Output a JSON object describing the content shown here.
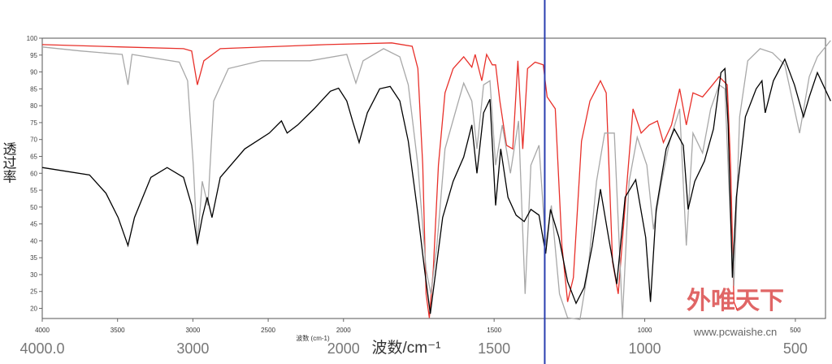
{
  "chart_data": {
    "type": "line",
    "ylabel": "透过率",
    "xlabel": "波数/cm⁻¹",
    "xlabel_small": "波数 (cm-1)",
    "xlim": [
      4000,
      400
    ],
    "xscale": {
      "break": 2000,
      "compress": 2
    },
    "xticks": [
      4000,
      3500,
      3000,
      2500,
      2000,
      1500,
      1000,
      500
    ],
    "x2ticks": [
      {
        "value": 4000,
        "label": "4000.0"
      },
      3000,
      2000,
      1500,
      1000,
      500
    ],
    "ylim": [
      17,
      100
    ],
    "yticks": [
      100,
      95,
      90,
      85,
      80,
      75,
      70,
      65,
      60,
      55,
      50,
      45,
      40,
      35,
      30,
      25,
      20
    ],
    "cursor": {
      "x": 1332,
      "color": "#2b3fb0"
    },
    "logo": {
      "title": "外唯天下",
      "url": "www.pcwaishe.cn"
    },
    "series": [
      {
        "color": "#000000",
        "x": [
          4000,
          3686,
          3577,
          3496,
          3431,
          3388,
          3279,
          3171,
          3062,
          3008,
          2970,
          2938,
          2905,
          2873,
          2818,
          2656,
          2493,
          2412,
          2374,
          2304,
          2195,
          2087,
          2033,
          1989,
          1970,
          1948,
          1921,
          1880,
          1845,
          1813,
          1785,
          1753,
          1731,
          1712,
          1693,
          1671,
          1636,
          1601,
          1574,
          1557,
          1535,
          1514,
          1495,
          1478,
          1454,
          1427,
          1400,
          1378,
          1351,
          1329,
          1313,
          1285,
          1256,
          1228,
          1201,
          1174,
          1147,
          1120,
          1093,
          1065,
          1030,
          997,
          981,
          962,
          929,
          902,
          872,
          856,
          834,
          802,
          772,
          747,
          734,
          723,
          709,
          696,
          666,
          630,
          611,
          600,
          573,
          535,
          503,
          473,
          454,
          427,
          383
        ],
        "values": [
          61.7,
          59.5,
          54.1,
          46.9,
          38.6,
          46.9,
          58.8,
          61.7,
          58.8,
          50.5,
          39.1,
          46.9,
          52.9,
          46.9,
          58.8,
          67.2,
          71.9,
          75.5,
          71.9,
          74.3,
          79.1,
          84.3,
          85.2,
          81.4,
          75.5,
          69.1,
          77.9,
          85.0,
          85.7,
          81.4,
          69.5,
          48.1,
          31.5,
          18.4,
          31.5,
          46.9,
          57.6,
          64.8,
          74.3,
          60.0,
          77.9,
          81.9,
          50.5,
          67.2,
          52.9,
          47.6,
          45.7,
          49.3,
          47.6,
          36.2,
          49.3,
          41.0,
          27.9,
          21.5,
          26.2,
          38.6,
          55.3,
          41.0,
          27.2,
          52.9,
          58.1,
          41.0,
          21.9,
          49.3,
          67.2,
          73.1,
          68.3,
          49.3,
          57.6,
          63.6,
          73.1,
          89.8,
          91.0,
          74.3,
          29.1,
          52.9,
          76.7,
          85.0,
          87.4,
          77.9,
          87.4,
          93.8,
          86.2,
          76.7,
          82.6,
          89.8,
          81.4
        ]
      },
      {
        "color": "#a8a8a8",
        "x": [
          4000,
          3740,
          3469,
          3431,
          3404,
          3090,
          3035,
          2997,
          2970,
          2938,
          2900,
          2862,
          2764,
          2547,
          2222,
          1989,
          1959,
          1935,
          1867,
          1813,
          1785,
          1753,
          1726,
          1710,
          1690,
          1663,
          1622,
          1601,
          1574,
          1557,
          1535,
          1514,
          1495,
          1473,
          1446,
          1419,
          1397,
          1378,
          1351,
          1329,
          1310,
          1283,
          1256,
          1215,
          1188,
          1160,
          1133,
          1101,
          1074,
          1052,
          1025,
          993,
          971,
          944,
          917,
          884,
          862,
          840,
          808,
          781,
          753,
          734,
          718,
          704,
          685,
          658,
          617,
          576,
          535,
          486,
          454,
          427,
          383
        ],
        "values": [
          97.4,
          96.2,
          95.2,
          86.2,
          95.2,
          92.9,
          87.4,
          62.4,
          38.6,
          57.6,
          50.5,
          81.4,
          91.0,
          93.3,
          93.3,
          95.2,
          86.7,
          93.3,
          96.9,
          94.5,
          86.2,
          62.4,
          31.5,
          24.3,
          38.6,
          67.2,
          80.2,
          86.7,
          81.4,
          67.2,
          86.2,
          87.4,
          62.4,
          74.3,
          60.0,
          75.5,
          24.3,
          62.4,
          68.3,
          38.6,
          50.5,
          24.3,
          17.2,
          16.7,
          31.5,
          57.6,
          71.9,
          71.9,
          17.2,
          57.6,
          70.7,
          62.4,
          43.4,
          57.6,
          69.5,
          79.1,
          38.6,
          71.9,
          66.0,
          79.1,
          86.2,
          85.0,
          50.5,
          26.7,
          76.7,
          93.3,
          96.9,
          95.7,
          92.1,
          71.9,
          88.6,
          94.5,
          99.3
        ]
      },
      {
        "color": "#e8302a",
        "x": [
          4000,
          3469,
          3062,
          3008,
          2970,
          2927,
          2818,
          2114,
          1840,
          1772,
          1753,
          1737,
          1726,
          1715,
          1702,
          1685,
          1663,
          1636,
          1601,
          1574,
          1563,
          1541,
          1525,
          1506,
          1495,
          1481,
          1459,
          1438,
          1421,
          1405,
          1389,
          1364,
          1337,
          1324,
          1297,
          1275,
          1256,
          1237,
          1210,
          1182,
          1147,
          1128,
          1107,
          1088,
          1065,
          1039,
          1012,
          985,
          958,
          938,
          911,
          884,
          862,
          840,
          808,
          775,
          753,
          726,
          715,
          704,
          693
        ],
        "values": [
          98.1,
          97.4,
          96.9,
          96.2,
          86.2,
          93.3,
          96.9,
          98.1,
          98.6,
          97.6,
          91.0,
          62.4,
          24.3,
          17.2,
          31.5,
          62.4,
          83.8,
          91.0,
          94.5,
          91.4,
          95.2,
          87.4,
          95.2,
          92.1,
          92.1,
          81.4,
          68.3,
          67.2,
          93.3,
          67.2,
          91.0,
          92.9,
          92.1,
          82.6,
          79.1,
          38.6,
          21.9,
          29.1,
          69.5,
          81.4,
          87.4,
          83.8,
          33.8,
          24.3,
          50.5,
          79.1,
          71.9,
          74.3,
          75.5,
          69.1,
          74.3,
          85.0,
          74.3,
          83.8,
          82.6,
          86.2,
          88.6,
          86.2,
          62.4,
          21.9,
          19.5
        ]
      }
    ]
  }
}
